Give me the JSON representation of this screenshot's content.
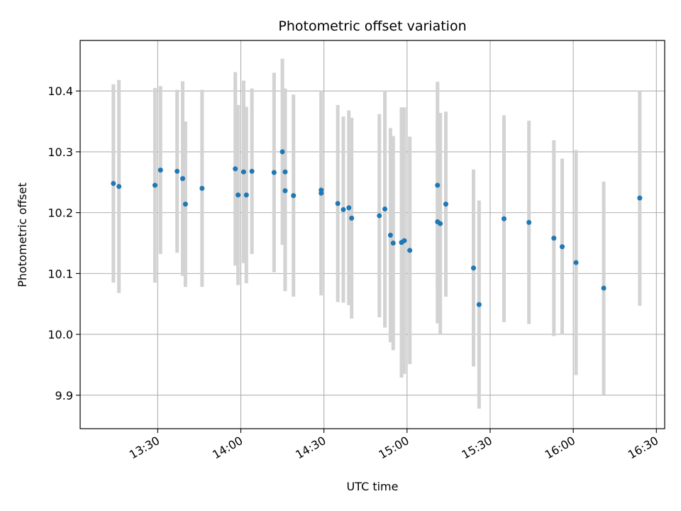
{
  "chart_data": {
    "type": "scatter",
    "title": "Photometric offset variation",
    "xlabel": "UTC time",
    "ylabel": "Photometric offset",
    "x_axis_type": "time",
    "xlim": [
      "13:02",
      "16:33"
    ],
    "ylim": [
      9.845,
      10.483
    ],
    "x_ticks": [
      "13:30",
      "14:00",
      "14:30",
      "15:00",
      "15:30",
      "16:00",
      "16:30"
    ],
    "y_ticks": [
      9.9,
      10.0,
      10.1,
      10.2,
      10.3,
      10.4
    ],
    "grid": true,
    "point_color": "#1f77b4",
    "errorbar_color": "#d3d3d3",
    "series": [
      {
        "x": [
          "13:14",
          "13:16",
          "13:29",
          "13:31",
          "13:37",
          "13:39",
          "13:40",
          "13:46",
          "13:58",
          "13:59",
          "14:01",
          "14:02",
          "14:04",
          "14:12",
          "14:15",
          "14:16",
          "14:16",
          "14:19",
          "14:29",
          "14:29",
          "14:35",
          "14:37",
          "14:39",
          "14:40",
          "14:50",
          "14:52",
          "14:54",
          "14:55",
          "14:58",
          "14:59",
          "15:01",
          "15:11",
          "15:11",
          "15:12",
          "15:14",
          "15:24",
          "15:26",
          "15:35",
          "15:44",
          "15:53",
          "15:56",
          "16:01",
          "16:11",
          "16:24"
        ],
        "y": [
          10.248,
          10.243,
          10.245,
          10.27,
          10.268,
          10.256,
          10.214,
          10.24,
          10.272,
          10.229,
          10.267,
          10.229,
          10.268,
          10.266,
          10.3,
          10.267,
          10.236,
          10.228,
          10.232,
          10.237,
          10.215,
          10.205,
          10.208,
          10.191,
          10.195,
          10.206,
          10.163,
          10.15,
          10.151,
          10.154,
          10.138,
          10.185,
          10.245,
          10.182,
          10.214,
          10.109,
          10.049,
          10.19,
          10.184,
          10.158,
          10.144,
          10.118,
          10.076,
          10.224
        ],
        "err": [
          0.163,
          0.175,
          0.16,
          0.138,
          0.134,
          0.16,
          0.136,
          0.162,
          0.159,
          0.148,
          0.15,
          0.145,
          0.136,
          0.164,
          0.153,
          0.137,
          0.165,
          0.166,
          0.168,
          0.163,
          0.162,
          0.153,
          0.16,
          0.165,
          0.167,
          0.195,
          0.176,
          0.176,
          0.222,
          0.219,
          0.187,
          0.167,
          0.17,
          0.182,
          0.152,
          0.162,
          0.171,
          0.17,
          0.167,
          0.161,
          0.145,
          0.185,
          0.175,
          0.177
        ]
      }
    ]
  }
}
